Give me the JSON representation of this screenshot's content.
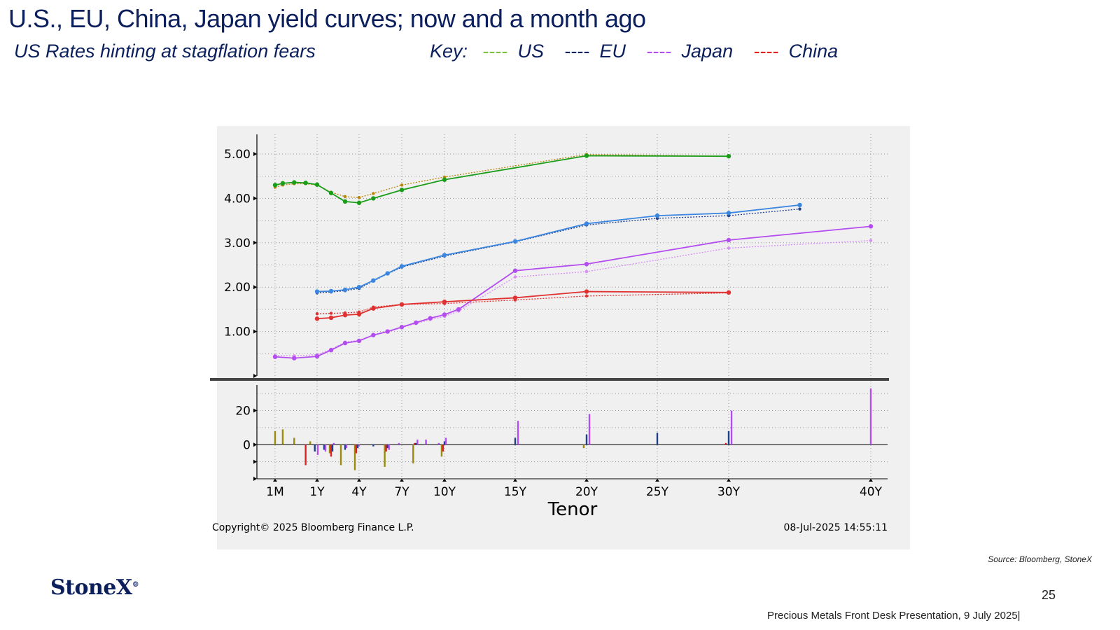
{
  "slide": {
    "title": "U.S., EU, China, Japan yield curves; now and a month ago",
    "subtitle": "US Rates hinting at stagflation fears",
    "key_label": "Key:",
    "key": [
      {
        "dash": "----",
        "label": "US",
        "color": "#7cc242"
      },
      {
        "dash": "----",
        "label": "EU",
        "color": "#0b1f5c"
      },
      {
        "dash": "----",
        "label": "Japan",
        "color": "#b44df0"
      },
      {
        "dash": "----",
        "label": "China",
        "color": "#e02020"
      }
    ],
    "source": "Source: Bloomberg, StoneX",
    "logo": "StoneX",
    "logo_mark": "®",
    "page_number": "25",
    "footer": "Precious Metals Front Desk Presentation, 9 July 2025|"
  },
  "chart_data": {
    "type": "line",
    "xlabel": "Tenor",
    "copyright": "Copyright© 2025 Bloomberg Finance L.P.",
    "timestamp": "08-Jul-2025 14:55:11",
    "x_ticks": [
      {
        "label": "1M",
        "x": 0.0833
      },
      {
        "label": "1Y",
        "x": 1
      },
      {
        "label": "4Y",
        "x": 4
      },
      {
        "label": "7Y",
        "x": 7
      },
      {
        "label": "10Y",
        "x": 10
      },
      {
        "label": "15Y",
        "x": 15
      },
      {
        "label": "20Y",
        "x": 20
      },
      {
        "label": "25Y",
        "x": 25
      },
      {
        "label": "30Y",
        "x": 30
      },
      {
        "label": "40Y",
        "x": 40
      }
    ],
    "y_ticks": [
      "5.00",
      "4.00",
      "3.00",
      "2.00",
      "1.00"
    ],
    "ylim": [
      0,
      5.35
    ],
    "grid": true,
    "series": [
      {
        "color": "#1a9e1a",
        "prior_color": "#b8860b",
        "current": [
          [
            0.0833,
            4.3
          ],
          [
            0.25,
            4.34
          ],
          [
            0.5,
            4.36
          ],
          [
            0.75,
            4.35
          ],
          [
            1,
            4.31
          ],
          [
            2,
            4.12
          ],
          [
            3,
            3.93
          ],
          [
            4,
            3.9
          ],
          [
            5,
            4.0
          ],
          [
            7,
            4.19
          ],
          [
            10,
            4.42
          ],
          [
            20,
            4.96
          ],
          [
            30,
            4.95
          ]
        ],
        "prior": [
          [
            0.0833,
            4.25
          ],
          [
            0.25,
            4.3
          ],
          [
            0.5,
            4.33
          ],
          [
            0.75,
            4.33
          ],
          [
            1,
            4.3
          ],
          [
            2,
            4.14
          ],
          [
            3,
            4.04
          ],
          [
            4,
            4.02
          ],
          [
            5,
            4.11
          ],
          [
            7,
            4.3
          ],
          [
            10,
            4.48
          ],
          [
            20,
            4.99
          ],
          [
            30,
            4.95
          ]
        ]
      },
      {
        "color": "#3a86e0",
        "prior_color": "#1e3f8a",
        "current": [
          [
            1,
            1.9
          ],
          [
            2,
            1.91
          ],
          [
            3,
            1.94
          ],
          [
            4,
            2.0
          ],
          [
            5,
            2.15
          ],
          [
            6,
            2.31
          ],
          [
            7,
            2.47
          ],
          [
            10,
            2.72
          ],
          [
            15,
            3.03
          ],
          [
            20,
            3.43
          ],
          [
            25,
            3.61
          ],
          [
            30,
            3.67
          ],
          [
            35,
            3.85
          ]
        ],
        "prior": [
          [
            1,
            1.87
          ],
          [
            2,
            1.89
          ],
          [
            3,
            1.92
          ],
          [
            4,
            1.97
          ],
          [
            5,
            2.14
          ],
          [
            6,
            2.3
          ],
          [
            7,
            2.45
          ],
          [
            10,
            2.7
          ],
          [
            15,
            3.02
          ],
          [
            20,
            3.4
          ],
          [
            25,
            3.55
          ],
          [
            30,
            3.61
          ],
          [
            35,
            3.76
          ]
        ]
      },
      {
        "color": "#b44df0",
        "prior_color": "#d68ff5",
        "current": [
          [
            0.0833,
            0.43
          ],
          [
            0.5,
            0.4
          ],
          [
            1,
            0.44
          ],
          [
            2,
            0.58
          ],
          [
            3,
            0.74
          ],
          [
            4,
            0.79
          ],
          [
            5,
            0.92
          ],
          [
            6,
            1.0
          ],
          [
            7,
            1.1
          ],
          [
            8,
            1.2
          ],
          [
            9,
            1.3
          ],
          [
            10,
            1.38
          ],
          [
            11,
            1.5
          ],
          [
            15,
            2.37
          ],
          [
            20,
            2.52
          ],
          [
            30,
            3.06
          ],
          [
            40,
            3.37
          ]
        ],
        "prior": [
          [
            0.0833,
            0.46
          ],
          [
            0.5,
            0.45
          ],
          [
            1,
            0.48
          ],
          [
            2,
            0.6
          ],
          [
            3,
            0.76
          ],
          [
            4,
            0.8
          ],
          [
            5,
            0.92
          ],
          [
            6,
            0.99
          ],
          [
            7,
            1.09
          ],
          [
            8,
            1.18
          ],
          [
            9,
            1.27
          ],
          [
            10,
            1.34
          ],
          [
            11,
            1.46
          ],
          [
            15,
            2.23
          ],
          [
            20,
            2.35
          ],
          [
            30,
            2.88
          ],
          [
            40,
            3.05
          ]
        ]
      },
      {
        "color": "#e03030",
        "prior_color": "#e03030",
        "current": [
          [
            1,
            1.29
          ],
          [
            2,
            1.31
          ],
          [
            3,
            1.37
          ],
          [
            4,
            1.39
          ],
          [
            5,
            1.52
          ],
          [
            7,
            1.61
          ],
          [
            10,
            1.67
          ],
          [
            15,
            1.76
          ],
          [
            20,
            1.9
          ],
          [
            30,
            1.88
          ]
        ],
        "prior": [
          [
            1,
            1.4
          ],
          [
            2,
            1.41
          ],
          [
            3,
            1.42
          ],
          [
            4,
            1.44
          ],
          [
            5,
            1.55
          ],
          [
            7,
            1.61
          ],
          [
            10,
            1.63
          ],
          [
            15,
            1.71
          ],
          [
            20,
            1.8
          ],
          [
            30,
            1.87
          ]
        ]
      }
    ],
    "change_panel": {
      "y_ticks": [
        "20",
        "0"
      ],
      "ylim": [
        -20,
        35
      ],
      "bars": [
        {
          "x": 0.0833,
          "color": "#9a8a10",
          "value": 8
        },
        {
          "x": 0.25,
          "color": "#9a8a10",
          "value": 9
        },
        {
          "x": 0.5,
          "color": "#9a8a10",
          "value": 4
        },
        {
          "x": 0.75,
          "color": "#e02020",
          "value": -12
        },
        {
          "x": 0.85,
          "color": "#9a8a10",
          "value": 2
        },
        {
          "x": 0.95,
          "color": "#1e3f8a",
          "value": -4
        },
        {
          "x": 1.05,
          "color": "#b44df0",
          "value": -6
        },
        {
          "x": 1.5,
          "color": "#1e3f8a",
          "value": -3
        },
        {
          "x": 1.6,
          "color": "#b44df0",
          "value": -4
        },
        {
          "x": 1.9,
          "color": "#9a8a10",
          "value": -5
        },
        {
          "x": 2.0,
          "color": "#e02020",
          "value": -7
        },
        {
          "x": 2.1,
          "color": "#1e3f8a",
          "value": -4
        },
        {
          "x": 2.2,
          "color": "#b44df0",
          "value": 1
        },
        {
          "x": 2.7,
          "color": "#9a8a10",
          "value": -12
        },
        {
          "x": 3.0,
          "color": "#1e3f8a",
          "value": -3
        },
        {
          "x": 3.1,
          "color": "#b44df0",
          "value": -2
        },
        {
          "x": 3.7,
          "color": "#9a8a10",
          "value": -15
        },
        {
          "x": 3.8,
          "color": "#e02020",
          "value": -5
        },
        {
          "x": 3.9,
          "color": "#1e3f8a",
          "value": -2
        },
        {
          "x": 4.0,
          "color": "#b44df0",
          "value": -1
        },
        {
          "x": 5.0,
          "color": "#1e3f8a",
          "value": -1
        },
        {
          "x": 5.8,
          "color": "#9a8a10",
          "value": -13
        },
        {
          "x": 5.9,
          "color": "#e02020",
          "value": -4
        },
        {
          "x": 6.0,
          "color": "#1e3f8a",
          "value": -2
        },
        {
          "x": 6.1,
          "color": "#b44df0",
          "value": -3
        },
        {
          "x": 6.8,
          "color": "#b44df0",
          "value": 1
        },
        {
          "x": 7.8,
          "color": "#9a8a10",
          "value": -11
        },
        {
          "x": 7.9,
          "color": "#e02020",
          "value": 1
        },
        {
          "x": 8.0,
          "color": "#1e3f8a",
          "value": 1
        },
        {
          "x": 8.1,
          "color": "#b44df0",
          "value": 3
        },
        {
          "x": 8.7,
          "color": "#b44df0",
          "value": 3
        },
        {
          "x": 9.6,
          "color": "#b44df0",
          "value": 1
        },
        {
          "x": 9.8,
          "color": "#9a8a10",
          "value": -7
        },
        {
          "x": 9.9,
          "color": "#e02020",
          "value": -4
        },
        {
          "x": 10.0,
          "color": "#1e3f8a",
          "value": 2
        },
        {
          "x": 10.1,
          "color": "#b44df0",
          "value": 4
        },
        {
          "x": 15.0,
          "color": "#1e3f8a",
          "value": 4
        },
        {
          "x": 15.2,
          "color": "#b44df0",
          "value": 14
        },
        {
          "x": 19.8,
          "color": "#9a8a10",
          "value": -2
        },
        {
          "x": 20.0,
          "color": "#1e3f8a",
          "value": 6
        },
        {
          "x": 20.2,
          "color": "#b44df0",
          "value": 18
        },
        {
          "x": 25.0,
          "color": "#1e3f8a",
          "value": 7
        },
        {
          "x": 29.8,
          "color": "#e02020",
          "value": 1
        },
        {
          "x": 30.0,
          "color": "#1e3f8a",
          "value": 8
        },
        {
          "x": 30.2,
          "color": "#b44df0",
          "value": 20
        },
        {
          "x": 40.2,
          "color": "#b44df0",
          "value": 33
        }
      ]
    }
  }
}
